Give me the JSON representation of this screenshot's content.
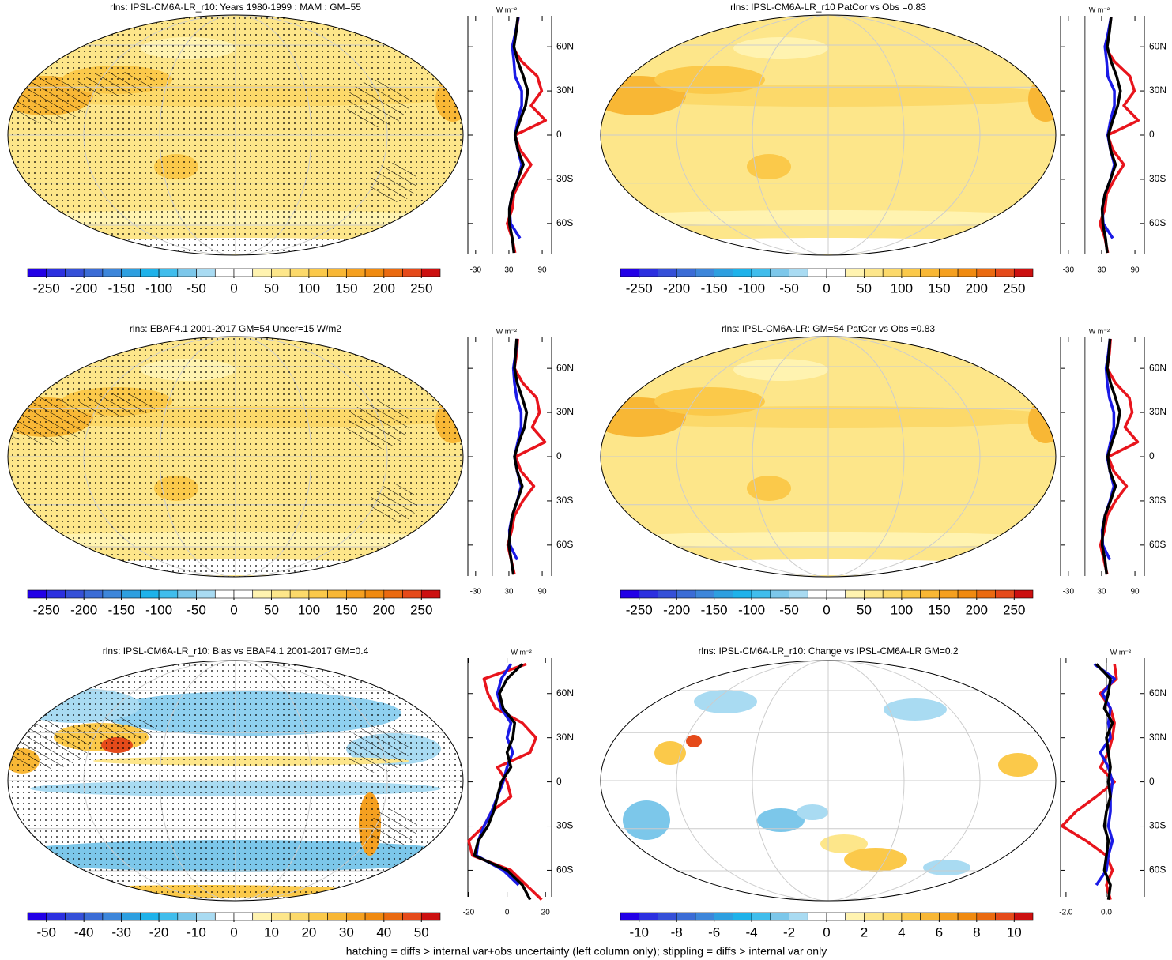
{
  "panels": [
    {
      "type": "map",
      "title": "rlns: IPSL-CM6A-LR_r10: Years 1980-1999 : MAM : GM=55",
      "colorbar": {
        "lim": [
          -275,
          275
        ],
        "ticks": [
          -250,
          -200,
          -150,
          -100,
          -50,
          0,
          50,
          100,
          150,
          200,
          250
        ]
      },
      "profile": {
        "type": "line",
        "unit": "W m⁻²",
        "xlim": [
          -44,
          107
        ],
        "xticks": [
          -30,
          30,
          90
        ],
        "ylim": [
          -81,
          81
        ],
        "yticks": [
          {
            "value": 60,
            "label": "60N"
          },
          {
            "value": 30,
            "label": "30N"
          },
          0,
          {
            "value": -30,
            "label": "30S"
          },
          {
            "value": -60,
            "label": "60S"
          }
        ],
        "y": [
          80,
          70,
          60,
          50,
          40,
          30,
          20,
          10,
          0,
          -10,
          -20,
          -30,
          -40,
          -50,
          -60,
          -70,
          -80
        ],
        "series": [
          {
            "color": "#e8141c",
            "values": [
              47,
              43,
              36,
              53,
              81,
              89,
              70,
              96,
              41,
              50,
              70,
              53,
              39,
              36,
              27,
              36,
              41
            ]
          },
          {
            "color": "#1a1ae6",
            "values": [
              47,
              42,
              36,
              39,
              41,
              53,
              53,
              46,
              41,
              46,
              53,
              46,
              36,
              31,
              33,
              50,
              null
            ]
          },
          {
            "color": "#000000",
            "values": [
              46,
              43,
              39,
              46,
              56,
              64,
              60,
              50,
              41,
              46,
              56,
              46,
              36,
              31,
              31,
              36,
              39
            ]
          }
        ]
      }
    },
    {
      "type": "map",
      "title": "rlns: IPSL-CM6A-LR_r10 PatCor vs Obs =0.83",
      "colorbar": {
        "lim": [
          -275,
          275
        ],
        "ticks": [
          -250,
          -200,
          -150,
          -100,
          -50,
          0,
          50,
          100,
          150,
          200,
          250
        ]
      },
      "profile": {
        "type": "line",
        "unit": "W m⁻²",
        "xlim": [
          -44,
          107
        ],
        "xticks": [
          -30,
          30,
          90
        ],
        "ylim": [
          -81,
          81
        ],
        "yticks": [
          {
            "value": 60,
            "label": "60N"
          },
          {
            "value": 30,
            "label": "30N"
          },
          0,
          {
            "value": -30,
            "label": "30S"
          },
          {
            "value": -60,
            "label": "60S"
          }
        ],
        "y": [
          80,
          70,
          60,
          50,
          40,
          30,
          20,
          10,
          0,
          -10,
          -20,
          -30,
          -40,
          -50,
          -60,
          -70,
          -80
        ],
        "series": [
          {
            "color": "#e8141c",
            "values": [
              47,
              43,
              36,
              53,
              81,
              89,
              70,
              96,
              41,
              50,
              70,
              53,
              39,
              36,
              27,
              36,
              41
            ]
          },
          {
            "color": "#1a1ae6",
            "values": [
              47,
              42,
              36,
              39,
              41,
              53,
              53,
              46,
              41,
              46,
              53,
              46,
              36,
              31,
              33,
              50,
              null
            ]
          },
          {
            "color": "#000000",
            "values": [
              47,
              44,
              40,
              47,
              57,
              64,
              59,
              50,
              42,
              46,
              55,
              46,
              36,
              31,
              32,
              37,
              40
            ]
          }
        ]
      }
    },
    {
      "type": "map",
      "title": "rlns: EBAF4.1 2001-2017 GM=54 Uncer=15 W/m2",
      "colorbar": {
        "lim": [
          -275,
          275
        ],
        "ticks": [
          -250,
          -200,
          -150,
          -100,
          -50,
          0,
          50,
          100,
          150,
          200,
          250
        ]
      },
      "profile": {
        "type": "line",
        "unit": "W m⁻²",
        "xlim": [
          -44,
          107
        ],
        "xticks": [
          -30,
          30,
          90
        ],
        "ylim": [
          -81,
          81
        ],
        "yticks": [
          {
            "value": 60,
            "label": "60N"
          },
          {
            "value": 30,
            "label": "30N"
          },
          0,
          {
            "value": -30,
            "label": "30S"
          },
          {
            "value": -60,
            "label": "60S"
          }
        ],
        "y": [
          80,
          70,
          60,
          50,
          40,
          30,
          20,
          10,
          0,
          -10,
          -20,
          -30,
          -40,
          -50,
          -60,
          -70,
          -80
        ],
        "series": [
          {
            "color": "#e8141c",
            "values": [
              46,
              44,
              40,
              55,
              80,
              85,
              72,
              95,
              42,
              52,
              75,
              55,
              40,
              35,
              28,
              34,
              40
            ]
          },
          {
            "color": "#1a1ae6",
            "values": [
              45,
              42,
              38,
              40,
              44,
              52,
              52,
              46,
              40,
              45,
              52,
              45,
              36,
              31,
              32,
              45,
              null
            ]
          },
          {
            "color": "#000000",
            "values": [
              44,
              42,
              40,
              45,
              54,
              62,
              58,
              48,
              40,
              45,
              54,
              45,
              36,
              32,
              30,
              34,
              38
            ]
          }
        ]
      }
    },
    {
      "type": "map",
      "title": "rlns: IPSL-CM6A-LR: GM=54 PatCor vs Obs =0.83",
      "colorbar": {
        "lim": [
          -275,
          275
        ],
        "ticks": [
          -250,
          -200,
          -150,
          -100,
          -50,
          0,
          50,
          100,
          150,
          200,
          250
        ]
      },
      "profile": {
        "type": "line",
        "unit": "W m⁻²",
        "xlim": [
          -44,
          107
        ],
        "xticks": [
          -30,
          30,
          90
        ],
        "ylim": [
          -81,
          81
        ],
        "yticks": [
          {
            "value": 60,
            "label": "60N"
          },
          {
            "value": 30,
            "label": "30N"
          },
          0,
          {
            "value": -30,
            "label": "30S"
          },
          {
            "value": -60,
            "label": "60S"
          }
        ],
        "y": [
          80,
          70,
          60,
          50,
          40,
          30,
          20,
          10,
          0,
          -10,
          -20,
          -30,
          -40,
          -50,
          -60,
          -70,
          -80
        ],
        "series": [
          {
            "color": "#e8141c",
            "values": [
              46,
              44,
              40,
              55,
              80,
              85,
              72,
              95,
              42,
              52,
              75,
              55,
              40,
              35,
              28,
              34,
              40
            ]
          },
          {
            "color": "#1a1ae6",
            "values": [
              45,
              42,
              38,
              40,
              44,
              52,
              52,
              46,
              40,
              45,
              52,
              45,
              36,
              31,
              32,
              45,
              null
            ]
          },
          {
            "color": "#000000",
            "values": [
              45,
              43,
              40,
              46,
              55,
              63,
              58,
              49,
              41,
              45,
              55,
              46,
              36,
              32,
              31,
              36,
              39
            ]
          }
        ]
      }
    },
    {
      "type": "map",
      "title": "rlns: IPSL-CM6A-LR_r10: Bias vs EBAF4.1 2001-2017 GM=0.4",
      "colorbar": {
        "lim": [
          -55,
          55
        ],
        "ticks": [
          -50,
          -40,
          -30,
          -20,
          -10,
          0,
          10,
          20,
          30,
          40,
          50
        ]
      },
      "profile": {
        "type": "line",
        "unit": "W m⁻²",
        "xlim": [
          -20.4,
          23.2
        ],
        "xticks": [
          -20,
          0,
          20
        ],
        "ylim": [
          -78,
          84
        ],
        "yticks": [
          {
            "value": 60,
            "label": "60N"
          },
          {
            "value": 30,
            "label": "30N"
          },
          0,
          {
            "value": -30,
            "label": "30S"
          },
          {
            "value": -60,
            "label": "60S"
          }
        ],
        "y": [
          80,
          70,
          60,
          50,
          40,
          30,
          20,
          10,
          0,
          -10,
          -20,
          -30,
          -40,
          -50,
          -60,
          -70,
          -80
        ],
        "series": [
          {
            "color": "#e8141c",
            "values": [
              10,
              -12,
              -10,
              -6,
              8,
              15,
              12,
              -5,
              0,
              2,
              -8,
              -12,
              -20,
              -18,
              2,
              10,
              18
            ]
          },
          {
            "color": "#1a1ae6",
            "values": [
              2,
              -3,
              -5,
              -3,
              2,
              0,
              3,
              0,
              -2,
              -5,
              -8,
              -12,
              -15,
              -16,
              -2,
              6,
              null
            ]
          },
          {
            "color": "#000000",
            "values": [
              8,
              0,
              -4,
              -2,
              4,
              3,
              0,
              2,
              -3,
              -5,
              -7,
              -10,
              -15,
              -17,
              0,
              8,
              12
            ]
          }
        ]
      }
    },
    {
      "type": "map",
      "title": "rlns: IPSL-CM6A-LR_r10: Change vs IPSL-CM6A-LR GM=0.2",
      "colorbar": {
        "lim": [
          -11,
          11
        ],
        "ticks": [
          -10,
          -8,
          -6,
          -4,
          -2,
          0,
          2,
          4,
          6,
          8,
          10
        ]
      },
      "profile": {
        "type": "line",
        "unit": "W m⁻²",
        "xlim": [
          -2.27,
          1.88
        ],
        "xticks": [
          {
            "value": -2,
            "label": "-2.0"
          },
          {
            "value": 0,
            "label": "0.0"
          }
        ],
        "ylim": [
          -78,
          84
        ],
        "yticks": [
          {
            "value": 60,
            "label": "60N"
          },
          {
            "value": 30,
            "label": "30N"
          },
          0,
          {
            "value": -30,
            "label": "30S"
          },
          {
            "value": -60,
            "label": "60S"
          }
        ],
        "y": [
          80,
          70,
          60,
          50,
          40,
          30,
          20,
          10,
          0,
          -10,
          -20,
          -30,
          -40,
          -50,
          -60,
          -70,
          -80
        ],
        "series": [
          {
            "color": "#e8141c",
            "values": [
              0.4,
              0.5,
              -0.3,
              0.2,
              0.4,
              0.3,
              0.1,
              -0.3,
              0.4,
              -0.5,
              -1.5,
              -2.2,
              -1.0,
              0,
              0.3,
              0,
              0.2
            ]
          },
          {
            "color": "#1a1ae6",
            "values": [
              -0.6,
              0.4,
              -0.2,
              0.2,
              0.1,
              0.2,
              -0.3,
              0.1,
              0.3,
              0.2,
              0.2,
              0.1,
              0.3,
              0.1,
              0,
              -0.5,
              null
            ]
          },
          {
            "color": "#000000",
            "values": [
              -0.5,
              0.2,
              0.1,
              -0.1,
              0.3,
              0,
              0.1,
              0.2,
              0.1,
              0.2,
              0,
              -0.1,
              0.1,
              0,
              -0.1,
              0.2,
              0.1
            ]
          }
        ]
      }
    }
  ],
  "colors": [
    "#2200e6",
    "#2c30e0",
    "#3550d8",
    "#3b6cd6",
    "#3d86da",
    "#2d9fe0",
    "#1eb2ea",
    "#40bdec",
    "#7cc7ea",
    "#a9dbf2",
    "#ffffff",
    "#ffffff",
    "#fff3b0",
    "#fde68a",
    "#fcd96a",
    "#fbc94a",
    "#f8b735",
    "#f5a020",
    "#f08a10",
    "#ea6a10",
    "#e54a1a",
    "#cc1010"
  ],
  "footnote": "hatching = diffs > internal var+obs uncertainty (left column only); stippling = diffs > internal var only"
}
